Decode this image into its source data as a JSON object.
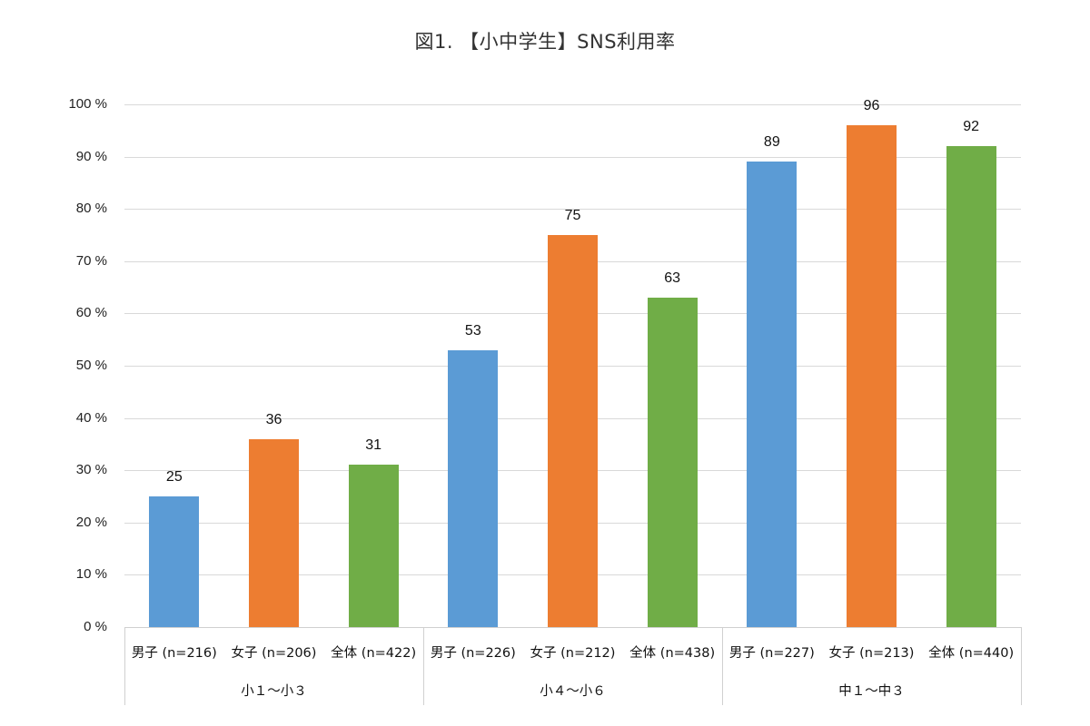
{
  "title": "図1. 【小中学生】SNS利用率",
  "y_ticks": [
    "100 %",
    "90 %",
    "80 %",
    "70 %",
    "60 %",
    "50 %",
    "40 %",
    "30 %",
    "20 %",
    "10 %",
    "0 %"
  ],
  "colors": {
    "male": "#5b9bd5",
    "female": "#ed7d31",
    "all": "#70ad47"
  },
  "groups": [
    {
      "label": "小１〜小３",
      "bars": [
        {
          "category": "男子 (n=216)",
          "value": "25"
        },
        {
          "category": "女子 (n=206)",
          "value": "36"
        },
        {
          "category": "全体 (n=422)",
          "value": "31"
        }
      ]
    },
    {
      "label": "小４〜小６",
      "bars": [
        {
          "category": "男子 (n=226)",
          "value": "53"
        },
        {
          "category": "女子 (n=212)",
          "value": "75"
        },
        {
          "category": "全体 (n=438)",
          "value": "63"
        }
      ]
    },
    {
      "label": "中１〜中３",
      "bars": [
        {
          "category": "男子 (n=227)",
          "value": "89"
        },
        {
          "category": "女子 (n=213)",
          "value": "96"
        },
        {
          "category": "全体 (n=440)",
          "value": "92"
        }
      ]
    }
  ],
  "chart_data": {
    "type": "bar",
    "title": "図1. 【小中学生】SNS利用率",
    "xlabel": "",
    "ylabel": "",
    "ylim": [
      0,
      100
    ],
    "y_tick_format": "%",
    "grid": true,
    "legend": null,
    "group_labels": [
      "小１〜小３",
      "小４〜小６",
      "中１〜中３"
    ],
    "categories": [
      "男子 (n=216)",
      "女子 (n=206)",
      "全体 (n=422)",
      "男子 (n=226)",
      "女子 (n=212)",
      "全体 (n=438)",
      "男子 (n=227)",
      "女子 (n=213)",
      "全体 (n=440)"
    ],
    "values": [
      25,
      36,
      31,
      53,
      75,
      63,
      89,
      96,
      92
    ],
    "bar_colors": [
      "#5b9bd5",
      "#ed7d31",
      "#70ad47",
      "#5b9bd5",
      "#ed7d31",
      "#70ad47",
      "#5b9bd5",
      "#ed7d31",
      "#70ad47"
    ],
    "data_labels": true
  }
}
